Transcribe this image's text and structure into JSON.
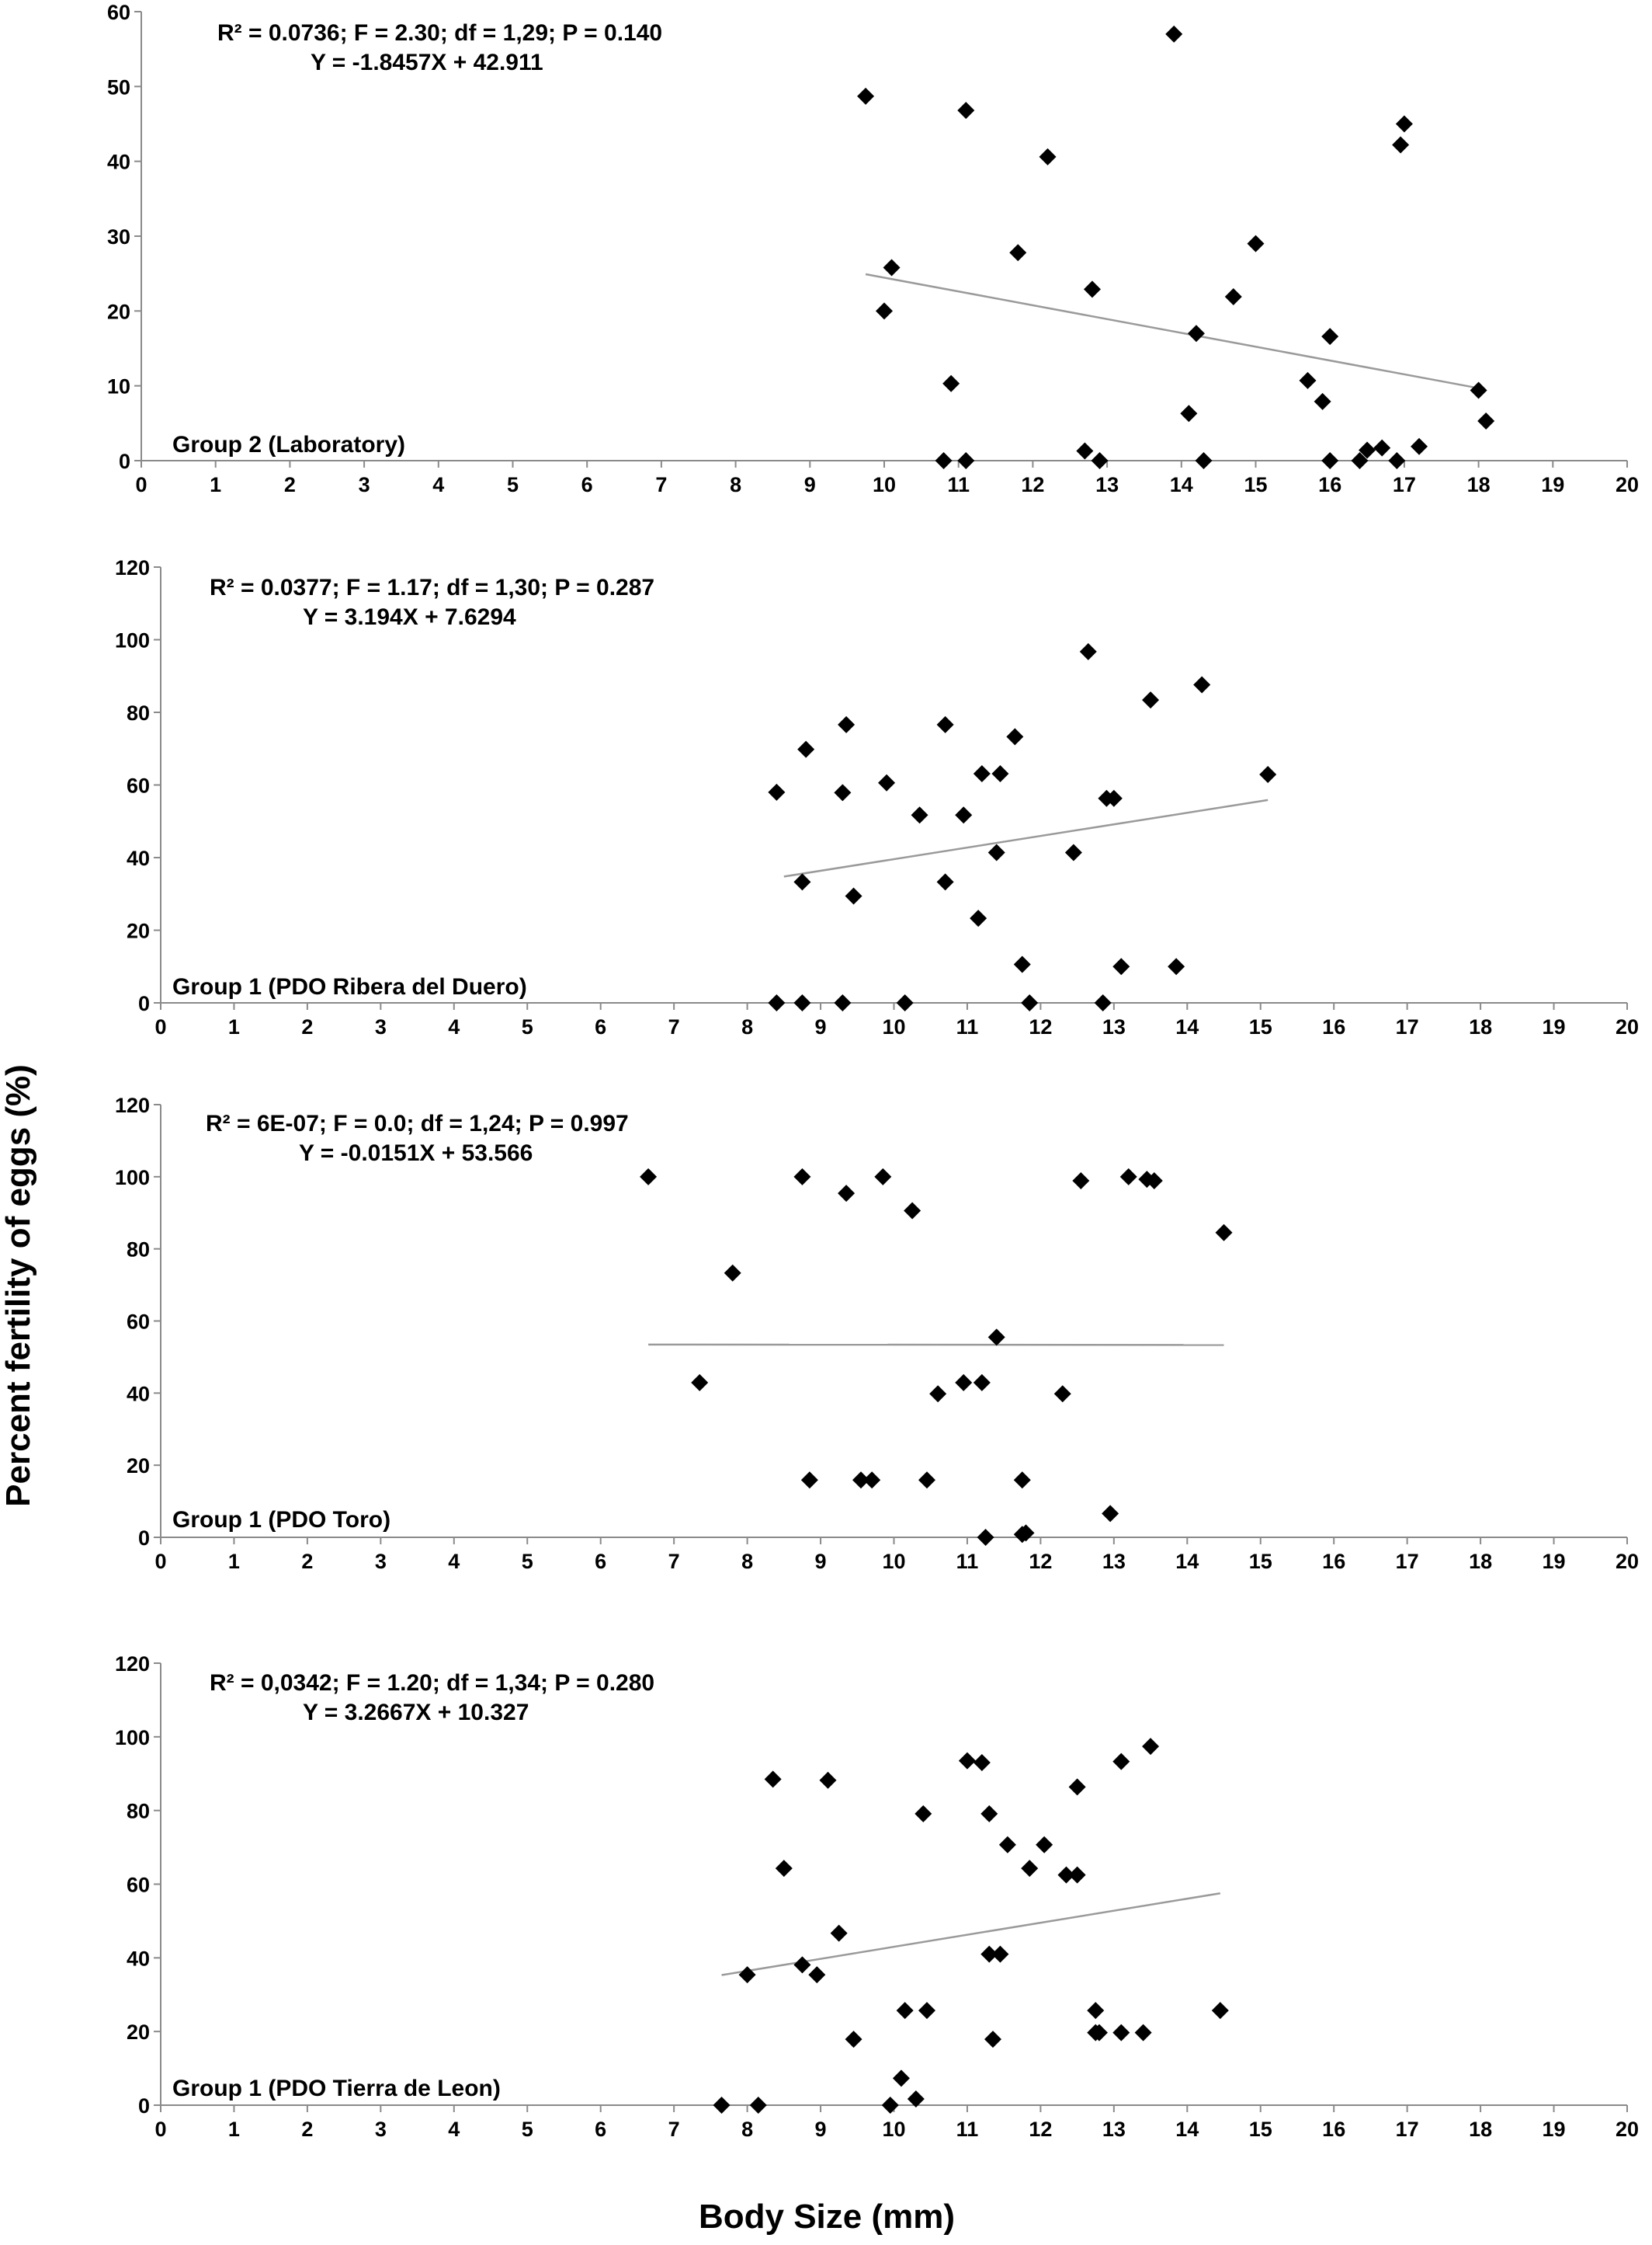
{
  "figure": {
    "ylabel": "Percent fertility of eggs (%)",
    "xlabel": "Body Size (mm)"
  },
  "chart_data": [
    {
      "type": "scatter",
      "group_label": "Group 2 (Laboratory)",
      "annotation": [
        "R² = 0.0736; F = 2.30; df = 1,29; P = 0.140",
        "Y = -1.8457X + 42.911"
      ],
      "xlim": [
        0,
        20
      ],
      "ylim": [
        0,
        60
      ],
      "xticks": [
        "0",
        "1",
        "2",
        "3",
        "4",
        "5",
        "6",
        "7",
        "8",
        "9",
        "10",
        "11",
        "12",
        "13",
        "14",
        "15",
        "16",
        "17",
        "18",
        "19",
        "20"
      ],
      "yticks": [
        "0",
        "10",
        "20",
        "30",
        "40",
        "50",
        "60"
      ],
      "trendline": {
        "slope": -1.8457,
        "intercept": 42.911,
        "x_range": [
          9.75,
          18.0
        ]
      },
      "points": [
        [
          9.75,
          48.7
        ],
        [
          10.0,
          20.0
        ],
        [
          10.1,
          25.8
        ],
        [
          10.8,
          0
        ],
        [
          10.9,
          10.3
        ],
        [
          11.1,
          0
        ],
        [
          11.1,
          46.8
        ],
        [
          11.8,
          27.8
        ],
        [
          12.2,
          40.6
        ],
        [
          12.7,
          1.3
        ],
        [
          12.8,
          22.9
        ],
        [
          12.9,
          0
        ],
        [
          13.9,
          57.0
        ],
        [
          14.1,
          6.3
        ],
        [
          14.2,
          17.0
        ],
        [
          14.3,
          0
        ],
        [
          14.7,
          21.9
        ],
        [
          15.0,
          29.0
        ],
        [
          15.7,
          10.7
        ],
        [
          15.9,
          7.9
        ],
        [
          16.0,
          0
        ],
        [
          16.0,
          16.6
        ],
        [
          16.4,
          0
        ],
        [
          16.5,
          1.4
        ],
        [
          16.7,
          1.7
        ],
        [
          16.9,
          0
        ],
        [
          16.95,
          42.2
        ],
        [
          17.0,
          45.0
        ],
        [
          17.2,
          1.9
        ],
        [
          18.0,
          9.4
        ],
        [
          18.1,
          5.3
        ]
      ]
    },
    {
      "type": "scatter",
      "group_label": "Group 1 (PDO Ribera del Duero)",
      "annotation": [
        "R² = 0.0377; F = 1.17; df = 1,30; P = 0.287",
        "Y = 3.194X + 7.6294"
      ],
      "xlim": [
        0,
        20
      ],
      "ylim": [
        0,
        120
      ],
      "xticks": [
        "0",
        "1",
        "2",
        "3",
        "4",
        "5",
        "6",
        "7",
        "8",
        "9",
        "10",
        "11",
        "12",
        "13",
        "14",
        "15",
        "16",
        "17",
        "18",
        "19",
        "20"
      ],
      "yticks": [
        "0",
        "20",
        "40",
        "60",
        "80",
        "100",
        "120"
      ],
      "trendline": {
        "slope": 3.194,
        "intercept": 7.6294,
        "x_range": [
          8.5,
          15.1
        ]
      },
      "points": [
        [
          8.4,
          0
        ],
        [
          8.4,
          58.0
        ],
        [
          8.75,
          0
        ],
        [
          8.75,
          33.3
        ],
        [
          8.8,
          69.8
        ],
        [
          9.3,
          0
        ],
        [
          9.3,
          57.9
        ],
        [
          9.35,
          76.6
        ],
        [
          9.45,
          29.4
        ],
        [
          9.9,
          60.6
        ],
        [
          10.15,
          0
        ],
        [
          10.35,
          51.7
        ],
        [
          10.7,
          33.3
        ],
        [
          10.7,
          76.6
        ],
        [
          10.95,
          51.7
        ],
        [
          11.15,
          23.3
        ],
        [
          11.2,
          63.1
        ],
        [
          11.4,
          41.4
        ],
        [
          11.45,
          63.1
        ],
        [
          11.65,
          73.3
        ],
        [
          11.75,
          10.6
        ],
        [
          11.85,
          0
        ],
        [
          12.45,
          41.4
        ],
        [
          12.65,
          96.7
        ],
        [
          12.85,
          0
        ],
        [
          12.9,
          56.3
        ],
        [
          13.0,
          56.3
        ],
        [
          13.1,
          10.0
        ],
        [
          13.5,
          83.4
        ],
        [
          13.85,
          10.0
        ],
        [
          14.2,
          87.6
        ],
        [
          15.1,
          62.9
        ]
      ]
    },
    {
      "type": "scatter",
      "group_label": "Group 1 (PDO Toro)",
      "annotation": [
        "R² = 6E-07; F = 0.0; df = 1,24; P = 0.997",
        "Y = -0.0151X + 53.566"
      ],
      "xlim": [
        0,
        20
      ],
      "ylim": [
        0,
        120
      ],
      "xticks": [
        "0",
        "1",
        "2",
        "3",
        "4",
        "5",
        "6",
        "7",
        "8",
        "9",
        "10",
        "11",
        "12",
        "13",
        "14",
        "15",
        "16",
        "17",
        "18",
        "19",
        "20"
      ],
      "yticks": [
        "0",
        "20",
        "40",
        "60",
        "80",
        "100",
        "120"
      ],
      "trendline": {
        "slope": -0.0151,
        "intercept": 53.566,
        "x_range": [
          6.65,
          14.5
        ]
      },
      "points": [
        [
          6.65,
          100
        ],
        [
          7.35,
          42.9
        ],
        [
          7.8,
          73.3
        ],
        [
          8.75,
          100
        ],
        [
          8.85,
          15.9
        ],
        [
          9.35,
          95.4
        ],
        [
          9.55,
          15.9
        ],
        [
          9.7,
          15.9
        ],
        [
          9.85,
          100
        ],
        [
          10.25,
          90.6
        ],
        [
          10.45,
          15.9
        ],
        [
          10.6,
          39.8
        ],
        [
          10.95,
          42.9
        ],
        [
          11.2,
          42.9
        ],
        [
          11.25,
          0
        ],
        [
          11.4,
          55.5
        ],
        [
          11.75,
          15.9
        ],
        [
          11.75,
          0.8
        ],
        [
          11.8,
          1.2
        ],
        [
          12.3,
          39.8
        ],
        [
          12.55,
          98.9
        ],
        [
          12.95,
          6.6
        ],
        [
          13.2,
          100
        ],
        [
          13.45,
          99.3
        ],
        [
          13.55,
          98.9
        ],
        [
          14.5,
          84.5
        ]
      ]
    },
    {
      "type": "scatter",
      "group_label": "Group 1 (PDO Tierra de Leon)",
      "annotation": [
        "R² = 0,0342; F = 1.20; df = 1,34; P = 0.280",
        "Y = 3.2667X + 10.327"
      ],
      "xlim": [
        0,
        20
      ],
      "ylim": [
        0,
        120
      ],
      "xticks": [
        "0",
        "1",
        "2",
        "3",
        "4",
        "5",
        "6",
        "7",
        "8",
        "9",
        "10",
        "11",
        "12",
        "13",
        "14",
        "15",
        "16",
        "17",
        "18",
        "19",
        "20"
      ],
      "yticks": [
        "0",
        "20",
        "40",
        "60",
        "80",
        "100",
        "120"
      ],
      "trendline": {
        "slope": 3.2667,
        "intercept": 10.327,
        "x_range": [
          7.65,
          14.45
        ]
      },
      "points": [
        [
          7.65,
          0
        ],
        [
          8.0,
          35.4
        ],
        [
          8.15,
          0
        ],
        [
          8.35,
          88.5
        ],
        [
          8.5,
          64.3
        ],
        [
          8.75,
          38.1
        ],
        [
          8.95,
          35.4
        ],
        [
          9.1,
          88.2
        ],
        [
          9.25,
          46.7
        ],
        [
          9.45,
          17.9
        ],
        [
          9.95,
          0
        ],
        [
          10.1,
          7.3
        ],
        [
          10.15,
          25.7
        ],
        [
          10.3,
          1.7
        ],
        [
          10.4,
          79.1
        ],
        [
          10.45,
          25.7
        ],
        [
          11.0,
          93.5
        ],
        [
          11.2,
          93.0
        ],
        [
          11.3,
          41.0
        ],
        [
          11.3,
          79.1
        ],
        [
          11.35,
          17.9
        ],
        [
          11.45,
          41.0
        ],
        [
          11.55,
          70.7
        ],
        [
          11.85,
          64.3
        ],
        [
          12.05,
          70.7
        ],
        [
          12.35,
          62.5
        ],
        [
          12.5,
          62.5
        ],
        [
          12.5,
          86.4
        ],
        [
          12.75,
          25.7
        ],
        [
          12.75,
          19.7
        ],
        [
          12.8,
          19.7
        ],
        [
          13.1,
          93.3
        ],
        [
          13.1,
          19.7
        ],
        [
          13.4,
          19.7
        ],
        [
          13.5,
          97.4
        ],
        [
          14.45,
          25.7
        ]
      ]
    }
  ]
}
